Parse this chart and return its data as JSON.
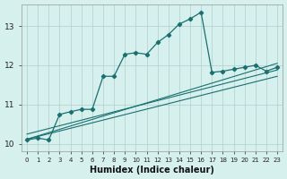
{
  "xlabel": "Humidex (Indice chaleur)",
  "bg_color": "#d6f0ee",
  "grid_color": "#b0cece",
  "line_color": "#1a7070",
  "xlim": [
    -0.5,
    23.5
  ],
  "ylim": [
    9.82,
    13.55
  ],
  "yticks": [
    10,
    11,
    12,
    13
  ],
  "xtick_labels": [
    "0",
    "1",
    "2",
    "3",
    "4",
    "5",
    "6",
    "7",
    "8",
    "9",
    "10",
    "11",
    "12",
    "13",
    "14",
    "15",
    "16",
    "17",
    "18",
    "19",
    "20",
    "21",
    "22",
    "23"
  ],
  "main_x": [
    0,
    1,
    2,
    3,
    4,
    5,
    6,
    7,
    8,
    9,
    10,
    11,
    12,
    13,
    14,
    15,
    16,
    17,
    18,
    19,
    20,
    21,
    22,
    23
  ],
  "main_y": [
    10.1,
    10.15,
    10.1,
    10.75,
    10.82,
    10.88,
    10.88,
    11.72,
    11.72,
    12.28,
    12.32,
    12.28,
    12.58,
    12.78,
    13.05,
    13.18,
    13.35,
    11.82,
    11.85,
    11.9,
    11.95,
    12.0,
    11.85,
    11.95
  ],
  "trend1_x": [
    0,
    23
  ],
  "trend1_y": [
    10.12,
    12.05
  ],
  "trend2_x": [
    0,
    23
  ],
  "trend2_y": [
    10.12,
    11.72
  ],
  "trend3_x": [
    0,
    23
  ],
  "trend3_y": [
    10.25,
    11.88
  ]
}
